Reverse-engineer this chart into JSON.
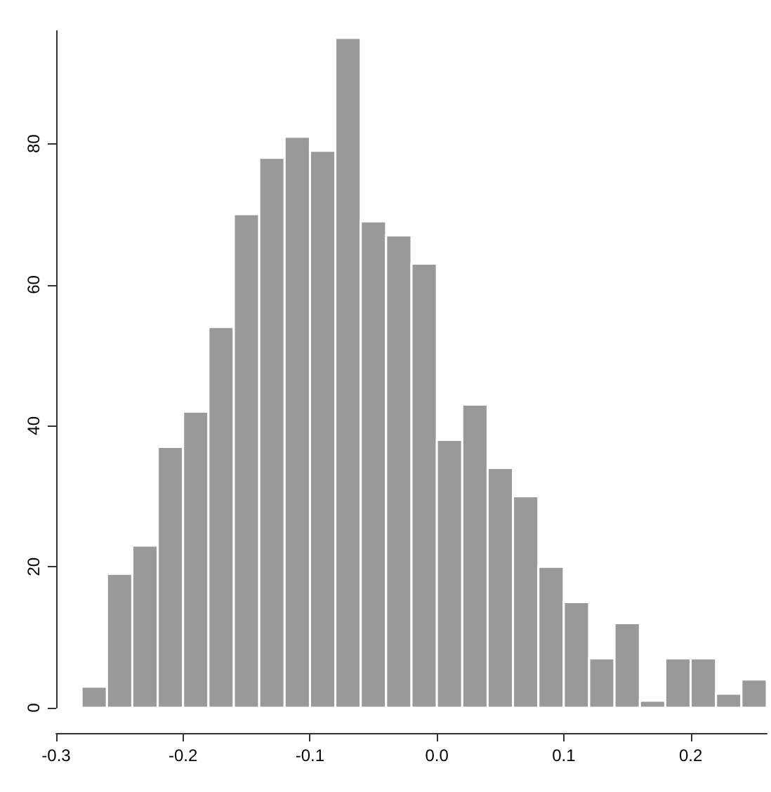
{
  "chart_data": {
    "type": "histogram",
    "bins": [
      -0.28,
      -0.26,
      -0.24,
      -0.22,
      -0.2,
      -0.18,
      -0.16,
      -0.14,
      -0.12,
      -0.1,
      -0.08,
      -0.06,
      -0.04,
      -0.02,
      0,
      0.02,
      0.04,
      0.06,
      0.08,
      0.1,
      0.12,
      0.14,
      0.16,
      0.18,
      0.2,
      0.22,
      0.24,
      0.26
    ],
    "values": [
      3,
      19,
      23,
      37,
      42,
      54,
      70,
      78,
      81,
      79,
      95,
      69,
      67,
      63,
      38,
      43,
      34,
      30,
      20,
      15,
      7,
      12,
      1,
      7,
      7,
      2,
      4
    ],
    "color": "#999999",
    "xlim": [
      -0.3,
      0.26
    ],
    "xticks": [
      -0.3,
      -0.2,
      -0.1,
      {
        "value": 0,
        "label": "0.0"
      },
      0.1,
      0.2
    ],
    "ylim": [
      0,
      96
    ],
    "yticks": [
      0,
      20,
      40,
      60,
      80
    ]
  }
}
